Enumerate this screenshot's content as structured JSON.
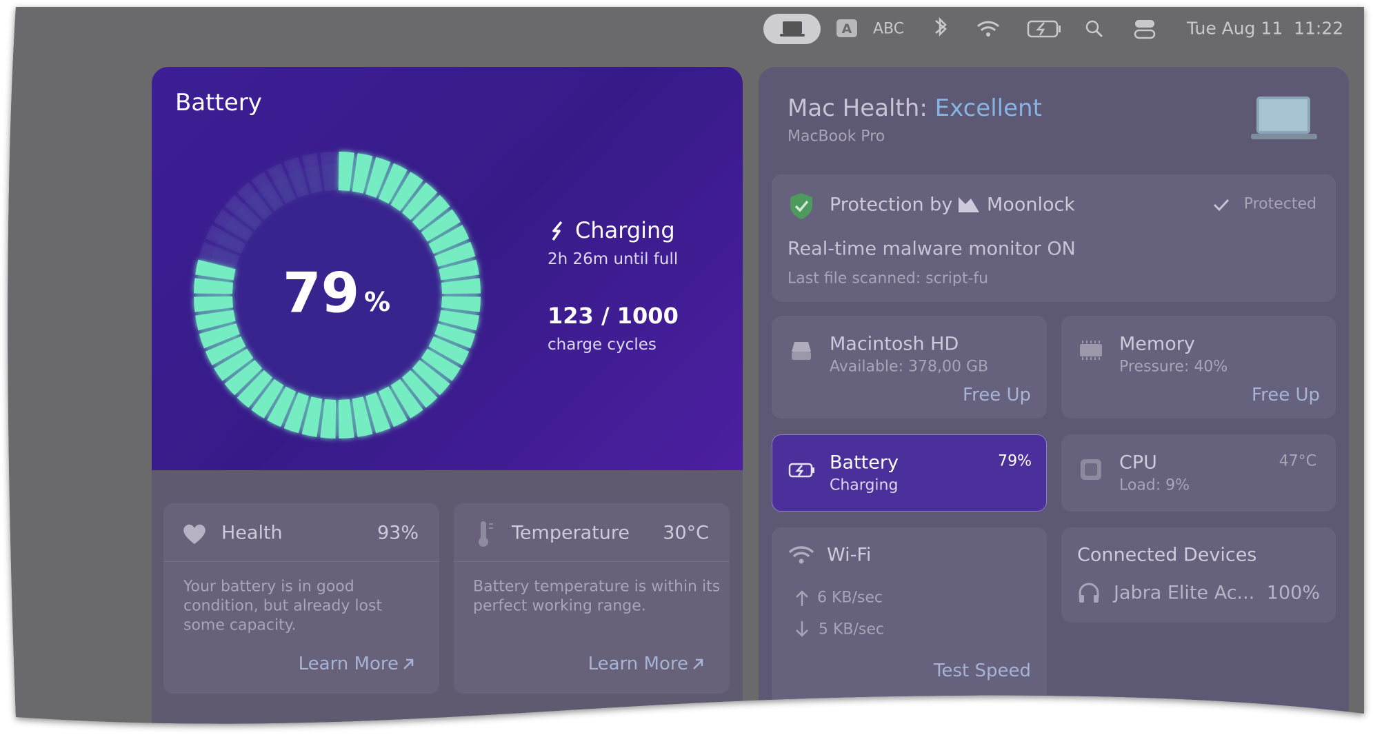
{
  "menubar": {
    "input_source": "ABC",
    "clock": "Tue Aug 11  11:22"
  },
  "battery_panel": {
    "title": "Battery",
    "percent": 79,
    "unit": "%",
    "status": "Charging",
    "time_left": "2h 26m until full",
    "cycles": "123 / 1000",
    "cycles_label": "charge cycles"
  },
  "health_card": {
    "title": "Health",
    "value": "93%",
    "description": [
      "Your battery is in good",
      "condition, but already lost",
      "some capacity."
    ],
    "link": "Learn More"
  },
  "temperature_card": {
    "title": "Temperature",
    "value": "30°C",
    "description": [
      "Battery temperature is within its",
      "perfect working range."
    ],
    "link": "Learn More"
  },
  "mac_health": {
    "title": "Mac Health:",
    "status": "Excellent",
    "model": "MacBook Pro"
  },
  "protection": {
    "label": "Protection by",
    "brand": "Moonlock",
    "state": "Protected",
    "monitor": "Real-time malware monitor ON",
    "last_scan": "Last file scanned: script-fu"
  },
  "tiles": {
    "disk": {
      "title": "Macintosh HD",
      "detail": "Available: 378,00 GB",
      "action": "Free Up"
    },
    "memory": {
      "title": "Memory",
      "detail": "Pressure: 40%",
      "action": "Free Up"
    },
    "battery": {
      "title": "Battery",
      "detail": "Charging",
      "value": "79%"
    },
    "cpu": {
      "title": "CPU",
      "detail": "Load: 9%",
      "value": "47°C"
    },
    "wifi": {
      "title": "Wi-Fi",
      "upload": "6 KB/sec",
      "download": "5 KB/sec",
      "action": "Test Speed"
    },
    "devices": {
      "title": "Connected Devices",
      "device": "Jabra Elite Ac...",
      "value": "100%"
    }
  }
}
